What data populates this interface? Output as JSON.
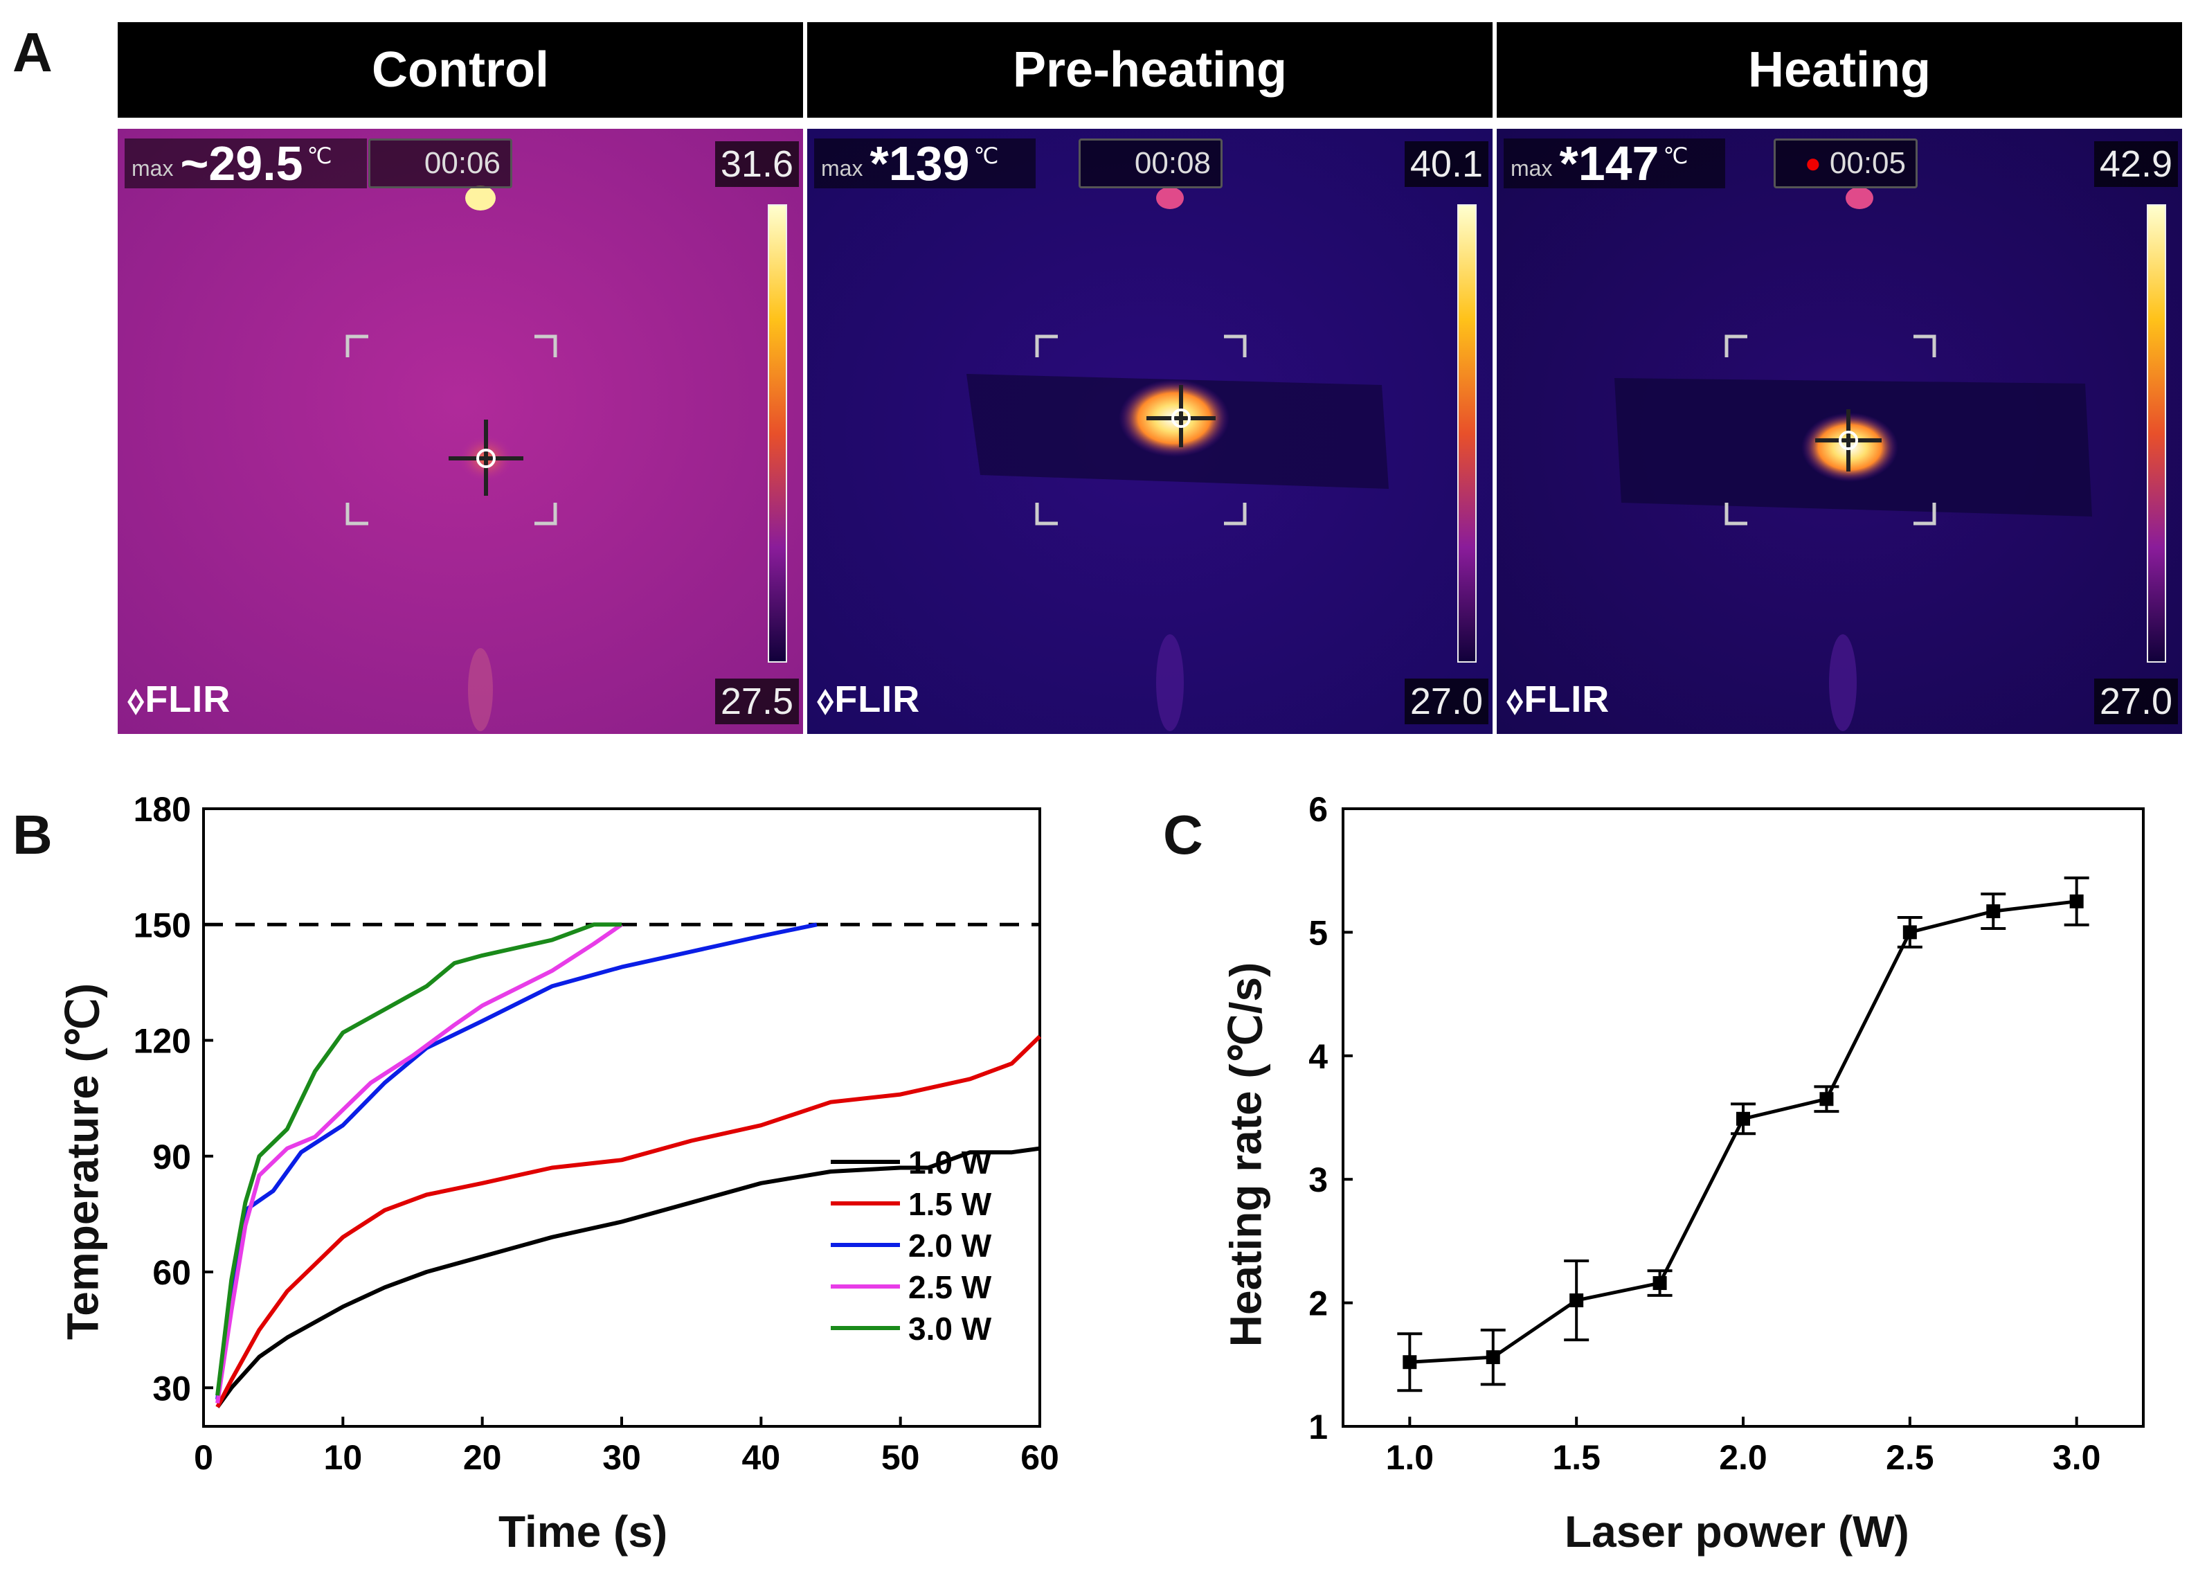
{
  "panel_labels": {
    "a": "A",
    "b": "B",
    "c": "C"
  },
  "thermal_panels": [
    {
      "header": "Control",
      "max_label": "max",
      "max_value": "~29.5",
      "unit": "℃",
      "timer": "00:06",
      "scale_max": "31.6",
      "scale_min": "27.5",
      "brand": "FLIR",
      "recording": false
    },
    {
      "header": "Pre-heating",
      "max_label": "max",
      "max_value": "*139",
      "unit": "℃",
      "timer": "00:08",
      "scale_max": "40.1",
      "scale_min": "27.0",
      "brand": "FLIR",
      "recording": false
    },
    {
      "header": "Heating",
      "max_label": "max",
      "max_value": "*147",
      "unit": "℃",
      "timer": "00:05",
      "scale_max": "42.9",
      "scale_min": "27.0",
      "brand": "FLIR",
      "recording": true
    }
  ],
  "colors": {
    "1.0 W": "#000000",
    "1.5 W": "#e00000",
    "2.0 W": "#0a1ee6",
    "2.5 W": "#e83ce8",
    "3.0 W": "#1a8a1a"
  },
  "chart_data": [
    {
      "type": "line",
      "xlabel": "Time (s)",
      "ylabel": "Temperature (℃)",
      "xlim": [
        0,
        60
      ],
      "ylim": [
        20,
        180
      ],
      "xticks": [
        0,
        10,
        20,
        30,
        40,
        50,
        60
      ],
      "yticks": [
        30,
        60,
        90,
        120,
        150,
        180
      ],
      "reference_line": {
        "y": 150,
        "style": "dashed"
      },
      "legend_position": "bottom-right",
      "series": [
        {
          "name": "1.0 W",
          "x": [
            1,
            2,
            4,
            6,
            8,
            10,
            13,
            16,
            20,
            25,
            30,
            35,
            40,
            45,
            50,
            52,
            55,
            58,
            60
          ],
          "y": [
            25,
            30,
            38,
            43,
            47,
            51,
            56,
            60,
            64,
            69,
            73,
            78,
            83,
            86,
            87,
            87,
            91,
            91,
            92
          ]
        },
        {
          "name": "1.5 W",
          "x": [
            1,
            2,
            4,
            6,
            8,
            10,
            13,
            16,
            20,
            25,
            30,
            35,
            40,
            45,
            50,
            55,
            58,
            60
          ],
          "y": [
            25,
            32,
            45,
            55,
            62,
            69,
            76,
            80,
            83,
            87,
            89,
            94,
            98,
            104,
            106,
            110,
            114,
            121
          ]
        },
        {
          "name": "2.0 W",
          "x": [
            1,
            2,
            3,
            5,
            7,
            10,
            13,
            16,
            20,
            25,
            30,
            35,
            40,
            44
          ],
          "y": [
            27,
            55,
            76,
            81,
            91,
            98,
            109,
            118,
            125,
            134,
            139,
            143,
            147,
            150
          ]
        },
        {
          "name": "2.5 W",
          "x": [
            1,
            2,
            3,
            4,
            6,
            8,
            10,
            12,
            15,
            18,
            20,
            25,
            28,
            30
          ],
          "y": [
            26,
            50,
            72,
            85,
            92,
            95,
            102,
            109,
            116,
            124,
            129,
            138,
            145,
            150
          ]
        },
        {
          "name": "3.0 W",
          "x": [
            1,
            2,
            3,
            4,
            6,
            8,
            10,
            13,
            16,
            18,
            20,
            25,
            28,
            30
          ],
          "y": [
            28,
            58,
            78,
            90,
            97,
            112,
            122,
            128,
            134,
            140,
            142,
            146,
            150,
            150
          ]
        }
      ]
    },
    {
      "type": "line",
      "xlabel": "Laser power (W)",
      "ylabel": "Heating rate (℃/s)",
      "xlim": [
        0.8,
        3.2
      ],
      "ylim": [
        1,
        6
      ],
      "xticks": [
        "1.0",
        "1.5",
        "2.0",
        "2.5",
        "3.0"
      ],
      "yticks": [
        1,
        2,
        3,
        4,
        5,
        6
      ],
      "series": [
        {
          "name": "Heating rate",
          "x": [
            1.0,
            1.25,
            1.5,
            1.75,
            2.0,
            2.25,
            2.5,
            2.75,
            3.0
          ],
          "y": [
            1.52,
            1.56,
            2.02,
            2.16,
            3.49,
            3.65,
            5.0,
            5.17,
            5.25
          ],
          "err": [
            0.23,
            0.22,
            0.32,
            0.1,
            0.12,
            0.1,
            0.12,
            0.14,
            0.19
          ]
        }
      ]
    }
  ]
}
